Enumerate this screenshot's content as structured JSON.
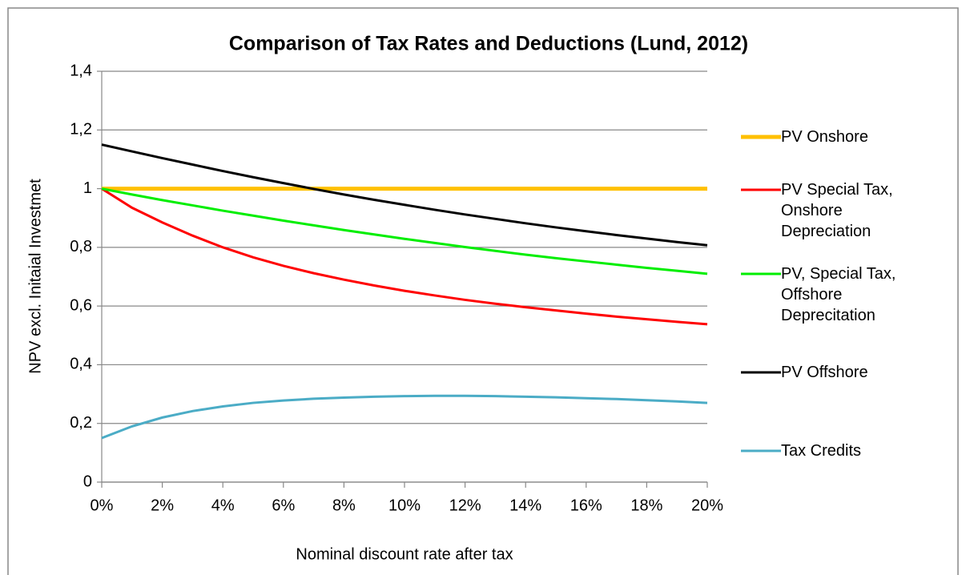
{
  "chart_data": {
    "type": "line",
    "title": "Comparison of Tax Rates and Deductions (Lund, 2012)",
    "x_label": "Nominal discount rate after tax",
    "y_label": "NPV excl. Initaial Investmet",
    "x": [
      0,
      1,
      2,
      3,
      4,
      5,
      6,
      7,
      8,
      9,
      10,
      11,
      12,
      13,
      14,
      15,
      16,
      17,
      18,
      19,
      20
    ],
    "series": [
      {
        "name": "PV Onshore",
        "color": "#ffc000",
        "values": [
          1,
          1,
          1,
          1,
          1,
          1,
          1,
          1,
          1,
          1,
          1,
          1,
          1,
          1,
          1,
          1,
          1,
          1,
          1,
          1,
          1
        ]
      },
      {
        "name": "PV Special Tax, Onshore Depreciation",
        "color": "#ff0000",
        "values": [
          1,
          0.935,
          0.885,
          0.84,
          0.8,
          0.766,
          0.737,
          0.712,
          0.69,
          0.67,
          0.652,
          0.636,
          0.621,
          0.608,
          0.596,
          0.585,
          0.574,
          0.564,
          0.555,
          0.546,
          0.538
        ]
      },
      {
        "name": "PV, Special Tax, Offshore Deprecitation",
        "color": "#00ee00",
        "values": [
          1,
          0.98,
          0.961,
          0.943,
          0.925,
          0.908,
          0.891,
          0.875,
          0.859,
          0.844,
          0.829,
          0.815,
          0.801,
          0.788,
          0.775,
          0.763,
          0.752,
          0.741,
          0.73,
          0.72,
          0.71
        ]
      },
      {
        "name": "PV Offshore",
        "color": "#000000",
        "values": [
          1.15,
          1.127,
          1.104,
          1.082,
          1.06,
          1.039,
          1.019,
          0.999,
          0.98,
          0.962,
          0.945,
          0.928,
          0.912,
          0.897,
          0.882,
          0.868,
          0.855,
          0.842,
          0.83,
          0.818,
          0.807
        ]
      },
      {
        "name": "Tax Credits",
        "color": "#4bacc6",
        "values": [
          0.15,
          0.19,
          0.22,
          0.242,
          0.258,
          0.27,
          0.278,
          0.284,
          0.288,
          0.291,
          0.293,
          0.294,
          0.294,
          0.293,
          0.291,
          0.289,
          0.286,
          0.283,
          0.279,
          0.275,
          0.27
        ]
      }
    ],
    "xlim": [
      0,
      20
    ],
    "xticks": [
      {
        "value": 0,
        "label": "0%"
      },
      {
        "value": 2,
        "label": "2%"
      },
      {
        "value": 4,
        "label": "4%"
      },
      {
        "value": 6,
        "label": "6%"
      },
      {
        "value": 8,
        "label": "8%"
      },
      {
        "value": 10,
        "label": "10%"
      },
      {
        "value": 12,
        "label": "12%"
      },
      {
        "value": 14,
        "label": "14%"
      },
      {
        "value": 16,
        "label": "16%"
      },
      {
        "value": 18,
        "label": "18%"
      },
      {
        "value": 20,
        "label": "20%"
      }
    ],
    "ylim": [
      0,
      1.4
    ],
    "yticks": [
      0,
      {
        "value": 0.2,
        "label": "0,2"
      },
      {
        "value": 0.4,
        "label": "0,4"
      },
      {
        "value": 0.6,
        "label": "0,6"
      },
      {
        "value": 0.8,
        "label": "0,8"
      },
      1,
      {
        "value": 1.2,
        "label": "1,2"
      },
      {
        "value": 1.4,
        "label": "1,4"
      }
    ],
    "grid": true,
    "legend": "right"
  }
}
